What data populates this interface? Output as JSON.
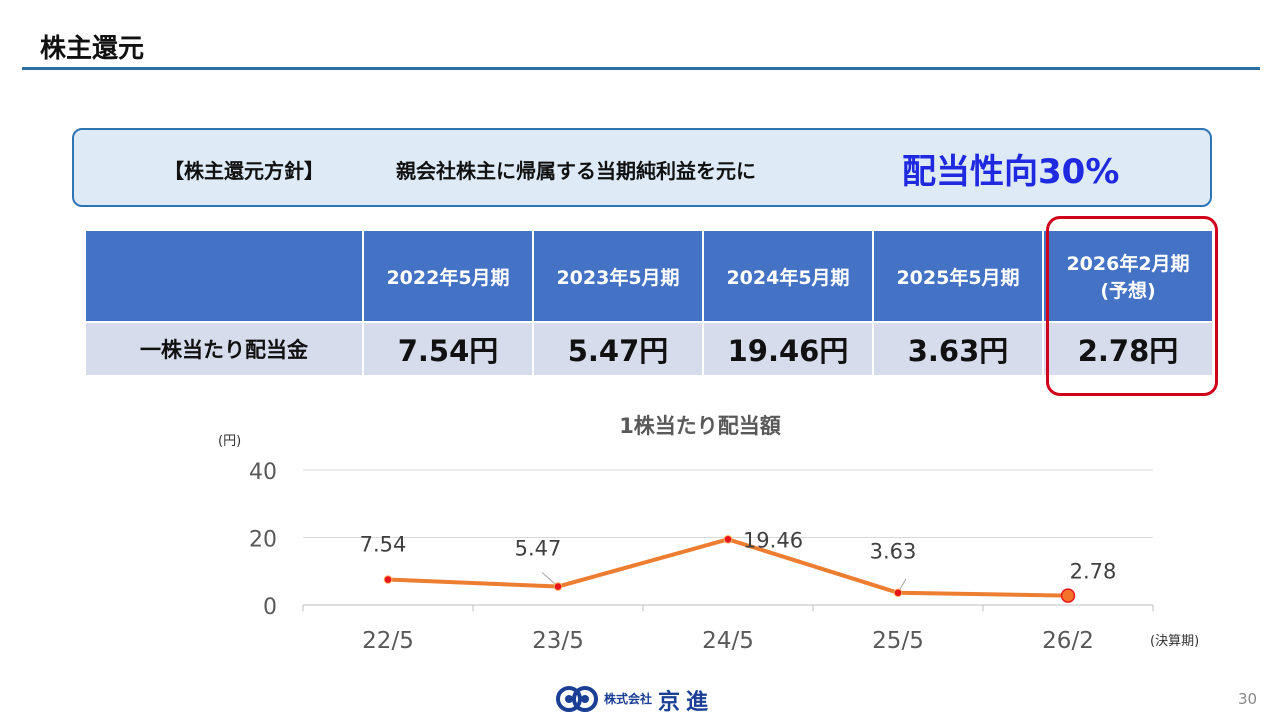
{
  "page": {
    "title": "株主還元",
    "number": "30"
  },
  "policy": {
    "label": "【株主還元方針】",
    "text": "親会社株主に帰属する当期純利益を元に",
    "ratio": "配当性向30%"
  },
  "table": {
    "row_label": "一株当たり配当金",
    "columns": [
      {
        "header": "2022年5月期",
        "sub": "",
        "value": "7.54円"
      },
      {
        "header": "2023年5月期",
        "sub": "",
        "value": "5.47円"
      },
      {
        "header": "2024年5月期",
        "sub": "",
        "value": "19.46円"
      },
      {
        "header": "2025年5月期",
        "sub": "",
        "value": "3.63円"
      },
      {
        "header": "2026年2月期",
        "sub": "(予想)",
        "value": "2.78円"
      }
    ]
  },
  "chart_data": {
    "type": "line",
    "title": "1株当たり配当額",
    "ylabel": "(円)",
    "xlabel": "(決算期)",
    "categories": [
      "22/5",
      "23/5",
      "24/5",
      "25/5",
      "26/2"
    ],
    "values": [
      7.54,
      5.47,
      19.46,
      3.63,
      2.78
    ],
    "data_labels": [
      "7.54",
      "5.47",
      "19.46",
      "3.63",
      "2.78"
    ],
    "ylim": [
      0,
      40
    ],
    "yticks": [
      "0",
      "20",
      "40"
    ],
    "grid": true,
    "line_color": "#ed7d31",
    "marker_color": "#e8141b",
    "forecast_marker_color": "#f4732b"
  },
  "footer": {
    "company_prefix": "株式会社",
    "company_name": "京進"
  },
  "colors": {
    "accent": "#2e6fa3",
    "table_header": "#4472c4",
    "highlight": "#d0021b",
    "ratio_text": "#1f2ae0"
  }
}
